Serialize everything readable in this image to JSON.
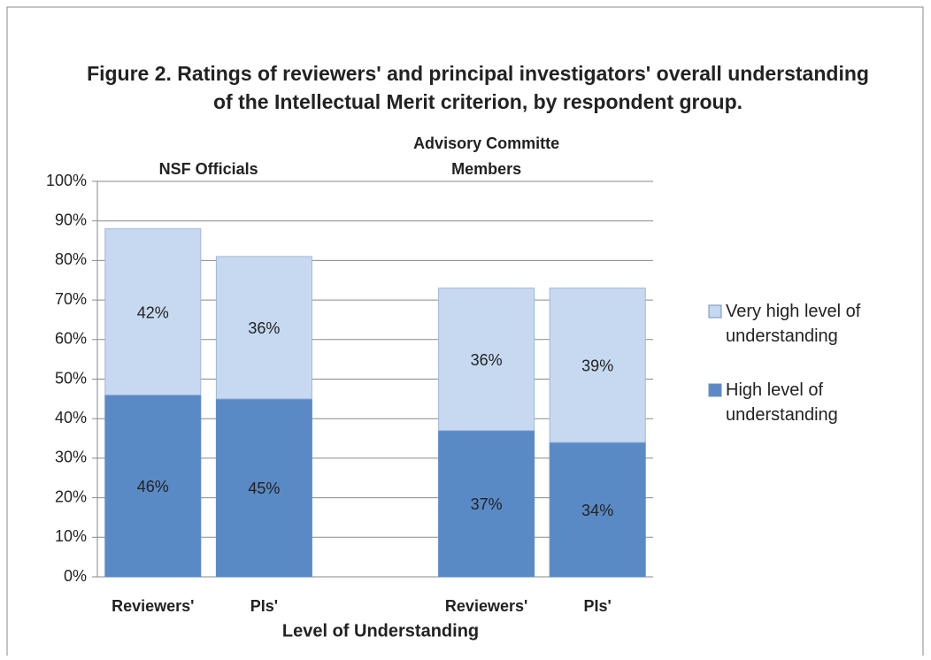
{
  "chart_data": {
    "type": "stacked_bar",
    "title_lines": [
      "Figure 2.  Ratings of reviewers' and principal investigators' overall understanding",
      "of the Intellectual Merit criterion, by respondent group."
    ],
    "x_label": "Level of Understanding",
    "group_labels": [
      [
        "NSF Officials"
      ],
      [
        "Advisory Committe",
        "Members"
      ]
    ],
    "categories": [
      "Reviewers'",
      "PIs'",
      null,
      "Reviewers'",
      "PIs'"
    ],
    "series": [
      {
        "name": "High level of understanding",
        "color": "#5a8ac6",
        "values": [
          46,
          45,
          null,
          37,
          34
        ],
        "value_labels": [
          "46%",
          "45%",
          null,
          "37%",
          "34%"
        ]
      },
      {
        "name": "Very high level of understanding",
        "color": "#c6d9f0",
        "values": [
          42,
          36,
          null,
          36,
          39
        ],
        "value_labels": [
          "42%",
          "36%",
          null,
          "36%",
          "39%"
        ]
      }
    ],
    "ylim": [
      0,
      100
    ],
    "yticks": [
      {
        "value": 0,
        "label": "0%"
      },
      {
        "value": 10,
        "label": "10%"
      },
      {
        "value": 20,
        "label": "20%"
      },
      {
        "value": 30,
        "label": "30%"
      },
      {
        "value": 40,
        "label": "40%"
      },
      {
        "value": 50,
        "label": "50%"
      },
      {
        "value": 60,
        "label": "60%"
      },
      {
        "value": 70,
        "label": "70%"
      },
      {
        "value": 80,
        "label": "80%"
      },
      {
        "value": 90,
        "label": "90%"
      },
      {
        "value": 100,
        "label": "100%"
      }
    ],
    "grid": true,
    "legend": "right"
  }
}
